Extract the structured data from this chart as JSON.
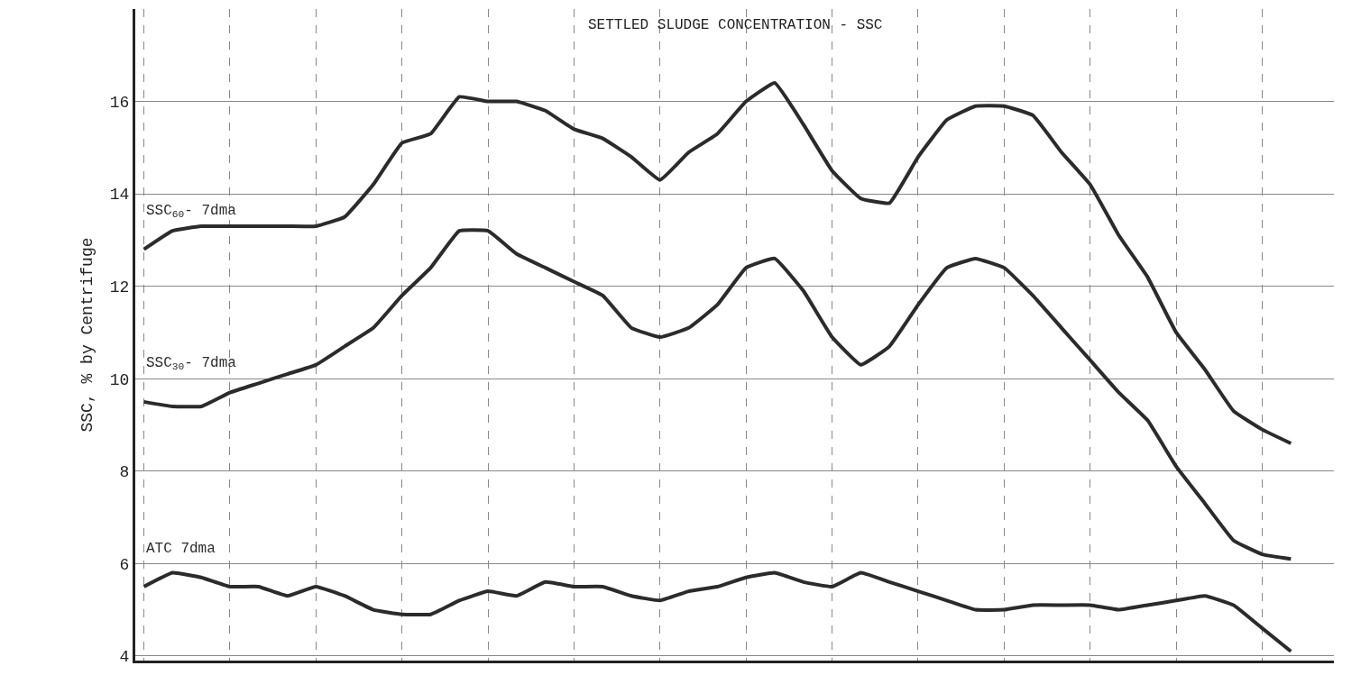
{
  "chart_data": {
    "type": "line",
    "title": "SETTLED SLUDGE CONCENTRATION - SSC",
    "ylabel": "SSC, % by Centrifuge",
    "categories": [
      null,
      null,
      null,
      null,
      null,
      null,
      null,
      null,
      null,
      null,
      null,
      null,
      null,
      null,
      null,
      null,
      null,
      null,
      null,
      null,
      null,
      null,
      null,
      null,
      null,
      null,
      null,
      null,
      null,
      null,
      null,
      null,
      null,
      null,
      null,
      null,
      null,
      null,
      null,
      null,
      null
    ],
    "series": [
      {
        "name": "SSC$_{60}$- 7dma",
        "color": "#2b2b2b",
        "values": [
          12.8,
          13.2,
          13.3,
          13.3,
          13.3,
          13.3,
          13.3,
          13.5,
          14.2,
          15.1,
          15.3,
          16.1,
          16.0,
          16.0,
          15.8,
          15.4,
          15.2,
          14.8,
          14.3,
          14.9,
          15.3,
          16.0,
          16.4,
          15.5,
          14.5,
          13.9,
          13.8,
          14.8,
          15.6,
          15.9,
          15.9,
          15.7,
          14.9,
          14.2,
          13.1,
          12.2,
          11.0,
          10.2,
          9.3,
          8.9,
          8.6
        ]
      },
      {
        "name": "SSC$_{30}$- 7dma",
        "color": "#2b2b2b",
        "values": [
          9.5,
          9.4,
          9.4,
          9.7,
          9.9,
          10.1,
          10.3,
          10.7,
          11.1,
          11.8,
          12.4,
          13.2,
          13.2,
          12.7,
          12.4,
          12.1,
          11.8,
          11.1,
          10.9,
          11.1,
          11.6,
          12.4,
          12.6,
          11.9,
          10.9,
          10.3,
          10.7,
          11.6,
          12.4,
          12.6,
          12.4,
          11.8,
          11.1,
          10.4,
          9.7,
          9.1,
          8.1,
          7.3,
          6.5,
          6.2,
          6.1
        ]
      },
      {
        "name": "ATC 7dma",
        "color": "#2b2b2b",
        "values": [
          5.5,
          5.8,
          5.7,
          5.5,
          5.5,
          5.3,
          5.5,
          5.3,
          5.0,
          4.9,
          4.9,
          5.2,
          5.4,
          5.3,
          5.6,
          5.5,
          5.5,
          5.3,
          5.2,
          5.4,
          5.5,
          5.7,
          5.8,
          5.6,
          5.5,
          5.8,
          5.6,
          5.4,
          5.2,
          5.0,
          5.0,
          5.1,
          5.1,
          5.1,
          5.0,
          5.1,
          5.2,
          5.3,
          5.1,
          4.6,
          4.1
        ]
      }
    ],
    "ylim": [
      3.9,
      18
    ],
    "yticks": [
      4,
      6,
      8,
      10,
      12,
      14,
      16
    ],
    "grid": true,
    "legend": false,
    "marker": "none",
    "line_style": "solid",
    "tick_labels": "y"
  }
}
